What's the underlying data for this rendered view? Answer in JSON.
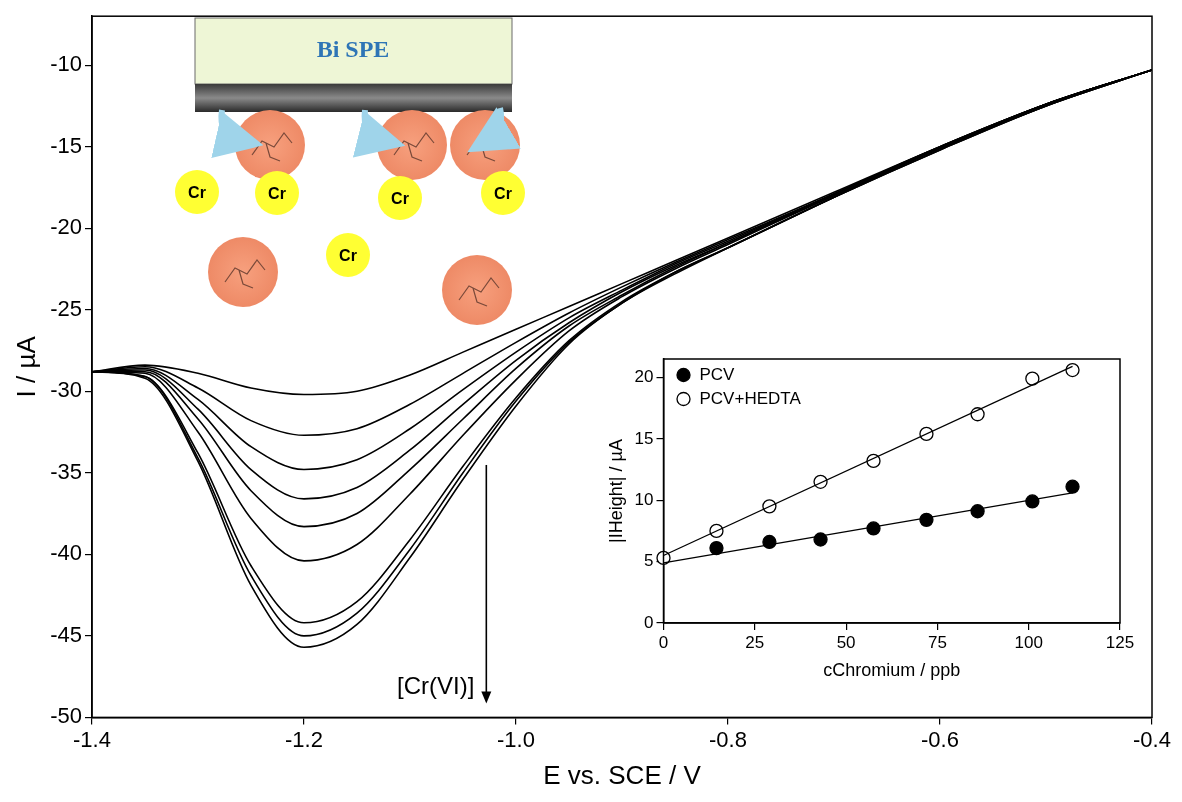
{
  "chart_data": [
    {
      "type": "line",
      "xlabel": "E vs. SCE / V",
      "ylabel": "I / µA",
      "xlim": [
        -1.4,
        -0.4
      ],
      "xticks": [
        -1.4,
        -1.2,
        {
          "value": -1,
          "label": "-1.0"
        },
        -0.8,
        -0.6,
        -0.4
      ],
      "ylim": [
        -50,
        -7
      ],
      "yticks": [
        -50,
        -45,
        -40,
        -35,
        -30,
        -25,
        -20,
        -15,
        -10
      ],
      "grid": false,
      "annotations": [
        "[Cr(VI)]"
      ],
      "illustration": {
        "electrode": "Bi SPE",
        "labels": [
          "Cr",
          "Cr",
          "Cr",
          "Cr",
          "Cr"
        ]
      },
      "x": [
        -1.4,
        -1.35,
        -1.3,
        -1.25,
        -1.2,
        -1.15,
        -1.1,
        -1.05,
        -1.0,
        -0.95,
        -0.9,
        -0.85,
        -0.8,
        -0.7,
        -0.6,
        -0.5,
        -0.4
      ],
      "series": [
        {
          "color": "#000000",
          "values": [
            -28.8,
            -28.4,
            -28.9,
            -29.8,
            -30.2,
            -30.0,
            -29.0,
            -27.6,
            -26.2,
            -24.8,
            -23.4,
            -22.0,
            -20.6,
            -17.8,
            -15.0,
            -12.4,
            -10.3
          ]
        },
        {
          "color": "#000000",
          "values": [
            -28.8,
            -28.5,
            -29.8,
            -31.8,
            -32.7,
            -32.3,
            -30.8,
            -28.9,
            -27.0,
            -25.2,
            -23.6,
            -22.1,
            -20.7,
            -17.9,
            -15.0,
            -12.4,
            -10.3
          ]
        },
        {
          "color": "#000000",
          "values": [
            -28.8,
            -28.6,
            -30.5,
            -33.4,
            -34.8,
            -34.2,
            -32.3,
            -29.9,
            -27.6,
            -25.5,
            -23.8,
            -22.2,
            -20.8,
            -17.9,
            -15.0,
            -12.4,
            -10.3
          ]
        },
        {
          "color": "#000000",
          "values": [
            -28.8,
            -28.7,
            -31.1,
            -34.8,
            -36.6,
            -35.9,
            -33.6,
            -30.8,
            -28.1,
            -25.8,
            -23.9,
            -22.3,
            -20.9,
            -17.9,
            -15.1,
            -12.4,
            -10.3
          ]
        },
        {
          "color": "#000000",
          "values": [
            -28.8,
            -28.8,
            -31.7,
            -36.1,
            -38.3,
            -37.5,
            -34.8,
            -31.7,
            -28.6,
            -26.0,
            -24.1,
            -22.4,
            -20.9,
            -18.0,
            -15.1,
            -12.4,
            -10.3
          ]
        },
        {
          "color": "#000000",
          "values": [
            -28.8,
            -28.9,
            -32.5,
            -37.8,
            -40.4,
            -39.4,
            -36.3,
            -32.7,
            -29.3,
            -26.3,
            -24.2,
            -22.5,
            -21.0,
            -18.0,
            -15.1,
            -12.4,
            -10.3
          ]
        },
        {
          "color": "#000000",
          "values": [
            -28.8,
            -29.1,
            -33.8,
            -40.7,
            -44.2,
            -42.9,
            -39.1,
            -34.6,
            -30.4,
            -26.9,
            -24.5,
            -22.7,
            -21.2,
            -18.1,
            -15.1,
            -12.5,
            -10.3
          ]
        },
        {
          "color": "#000000",
          "values": [
            -28.8,
            -29.1,
            -34.1,
            -41.3,
            -45.0,
            -43.6,
            -39.7,
            -35.0,
            -30.6,
            -27.0,
            -24.6,
            -22.7,
            -21.2,
            -18.1,
            -15.2,
            -12.5,
            -10.3
          ]
        },
        {
          "color": "#000000",
          "values": [
            -28.8,
            -29.2,
            -34.3,
            -41.9,
            -45.7,
            -44.3,
            -40.2,
            -35.4,
            -30.9,
            -27.1,
            -24.6,
            -22.8,
            -21.2,
            -18.1,
            -15.2,
            -12.5,
            -10.3
          ]
        }
      ]
    },
    {
      "type": "scatter",
      "xlabel": "cChromium / ppb",
      "ylabel": "|IHeight| / µA",
      "xlim": [
        0,
        125
      ],
      "xticks": [
        0,
        25,
        50,
        75,
        100,
        125
      ],
      "ylim": [
        0,
        21.5
      ],
      "yticks": [
        0,
        5,
        10,
        15,
        20
      ],
      "grid": false,
      "legend": "upper left",
      "x": [
        0,
        14.5,
        29,
        43,
        57.5,
        72,
        86,
        101,
        112
      ],
      "series": [
        {
          "name": "PCV",
          "color": "#000000",
          "marker": "filled_circle",
          "values": [
            null,
            6.1,
            6.6,
            6.8,
            7.7,
            8.4,
            9.1,
            9.9,
            11.1
          ],
          "fit_x": [
            0,
            112
          ],
          "fit_values": [
            4.9,
            10.6
          ]
        },
        {
          "name": "PCV+HEDTA",
          "color": "#000000",
          "marker": "open_circle",
          "values": [
            5.3,
            7.5,
            9.5,
            11.5,
            13.2,
            15.4,
            17.0,
            19.9,
            20.6
          ],
          "fit_x": [
            0,
            112
          ],
          "fit_values": [
            5.5,
            20.9
          ]
        }
      ]
    }
  ]
}
